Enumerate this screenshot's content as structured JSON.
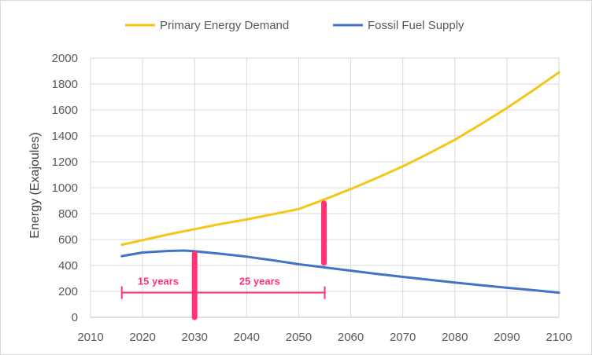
{
  "chart_data": {
    "type": "line",
    "title": "",
    "xlabel": "",
    "ylabel": "Energy (Exajoules)",
    "xlim": [
      2010,
      2100
    ],
    "ylim": [
      0,
      2000
    ],
    "xticks": [
      2010,
      2020,
      2030,
      2040,
      2050,
      2060,
      2070,
      2080,
      2090,
      2100
    ],
    "yticks": [
      0,
      200,
      400,
      600,
      800,
      1000,
      1200,
      1400,
      1600,
      1800,
      2000
    ],
    "grid": true,
    "legend_position": "top",
    "series": [
      {
        "name": "Primary Energy Demand",
        "color": "#f5c518",
        "x": [
          2016,
          2020,
          2025,
          2030,
          2035,
          2040,
          2045,
          2050,
          2055,
          2060,
          2065,
          2070,
          2075,
          2080,
          2085,
          2090,
          2095,
          2100
        ],
        "y": [
          560,
          595,
          640,
          680,
          720,
          755,
          795,
          835,
          910,
          990,
          1075,
          1165,
          1265,
          1370,
          1490,
          1615,
          1750,
          1890
        ]
      },
      {
        "name": "Fossil Fuel Supply",
        "color": "#4472c4",
        "x": [
          2016,
          2020,
          2025,
          2028,
          2030,
          2035,
          2040,
          2045,
          2050,
          2055,
          2060,
          2065,
          2070,
          2075,
          2080,
          2085,
          2090,
          2095,
          2100
        ],
        "y": [
          472,
          500,
          512,
          515,
          510,
          490,
          468,
          440,
          410,
          385,
          360,
          335,
          312,
          290,
          268,
          248,
          228,
          210,
          190
        ]
      }
    ],
    "annotations": {
      "bracket": {
        "x_start": 2016,
        "x_mid": 2030,
        "x_end": 2055,
        "y": 190
      },
      "bar_2030": {
        "x": 2030,
        "y_low": 0,
        "y_high": 490
      },
      "bar_2055": {
        "x": 2055,
        "y_low": 420,
        "y_high": 880
      },
      "label_first": "15 years",
      "label_second": "25 years",
      "color": "#ff3375"
    }
  }
}
